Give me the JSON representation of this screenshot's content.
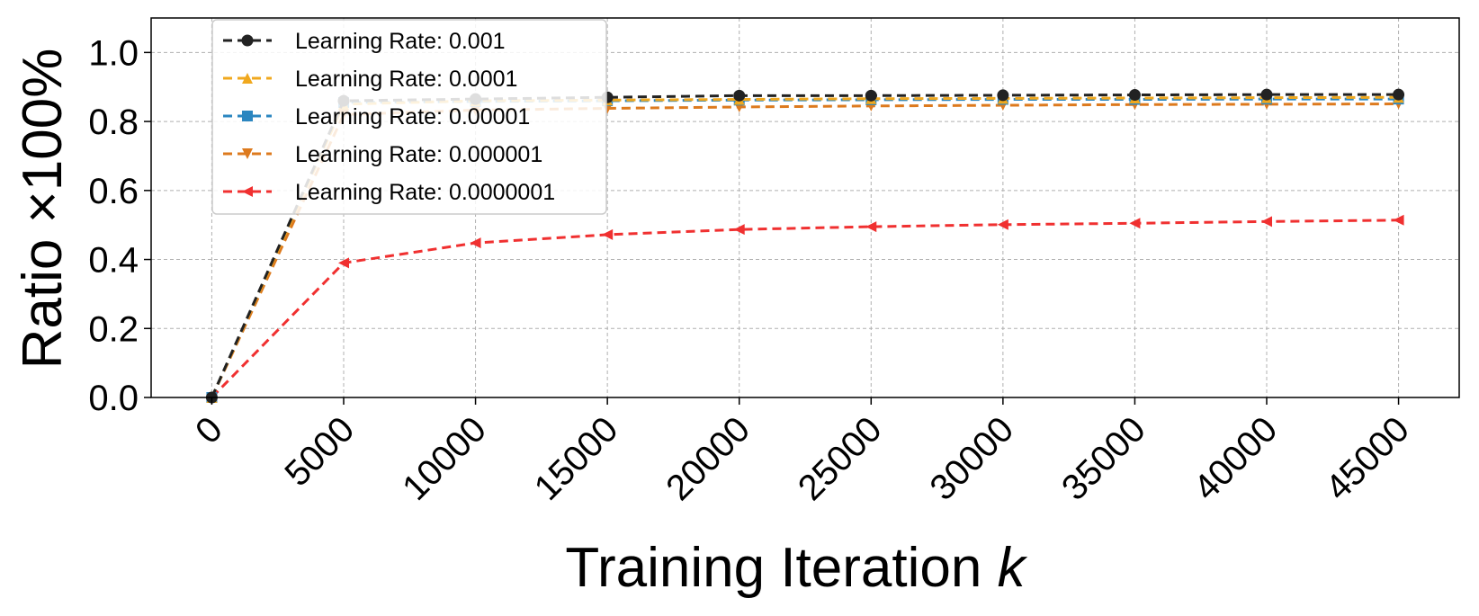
{
  "chart_data": {
    "type": "line",
    "xlabel": "Training Iteration",
    "xlabel_var": "k",
    "ylabel": "Ratio ×100%",
    "ylim": [
      0,
      1.1
    ],
    "xlim": [
      -2300,
      47300
    ],
    "grid": true,
    "legend_position": "upper-left",
    "xticks": [
      0,
      5000,
      10000,
      15000,
      20000,
      25000,
      30000,
      35000,
      40000,
      45000
    ],
    "xtick_labels": [
      "0",
      "5000",
      "10000",
      "15000",
      "20000",
      "25000",
      "30000",
      "35000",
      "40000",
      "45000"
    ],
    "yticks": [
      0.0,
      0.2,
      0.4,
      0.6,
      0.8,
      1.0
    ],
    "ytick_labels": [
      "0.0",
      "0.2",
      "0.4",
      "0.6",
      "0.8",
      "1.0"
    ],
    "x": [
      0,
      5000,
      10000,
      15000,
      20000,
      25000,
      30000,
      35000,
      40000,
      45000
    ],
    "series": [
      {
        "name": "Learning Rate: 0.001",
        "color": "#222222",
        "marker": "circle",
        "values": [
          0.0,
          0.86,
          0.865,
          0.87,
          0.875,
          0.875,
          0.876,
          0.877,
          0.878,
          0.878
        ]
      },
      {
        "name": "Learning Rate: 0.0001",
        "color": "#f0a81e",
        "marker": "triangle-up",
        "values": [
          0.0,
          0.85,
          0.86,
          0.862,
          0.864,
          0.866,
          0.867,
          0.868,
          0.869,
          0.87
        ]
      },
      {
        "name": "Learning Rate: 0.00001",
        "color": "#2b86c0",
        "marker": "square",
        "values": [
          0.0,
          0.855,
          0.858,
          0.86,
          0.862,
          0.863,
          0.864,
          0.864,
          0.865,
          0.865
        ]
      },
      {
        "name": "Learning Rate: 0.000001",
        "color": "#dd7a1e",
        "marker": "triangle-down",
        "values": [
          0.0,
          0.82,
          0.833,
          0.838,
          0.842,
          0.845,
          0.847,
          0.849,
          0.85,
          0.851
        ]
      },
      {
        "name": "Learning Rate: 0.0000001",
        "color": "#f03030",
        "marker": "triangle-left",
        "values": [
          0.0,
          0.39,
          0.448,
          0.472,
          0.487,
          0.495,
          0.501,
          0.505,
          0.51,
          0.514
        ]
      }
    ]
  }
}
